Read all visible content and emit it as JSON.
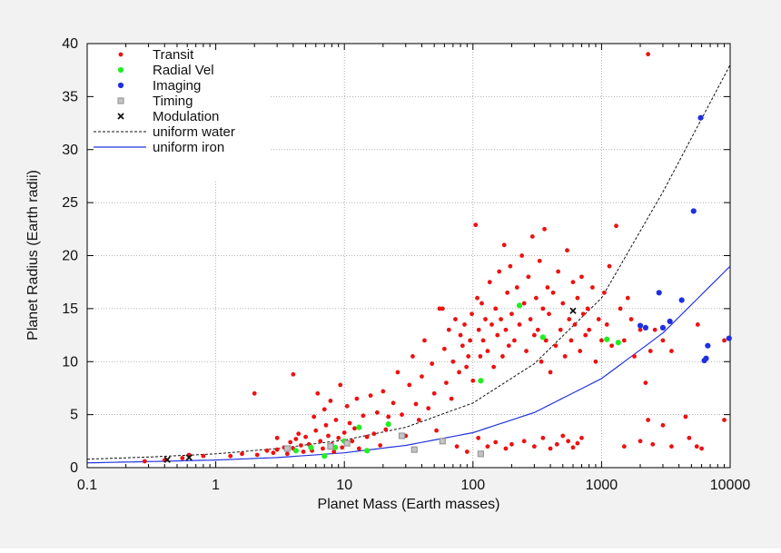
{
  "chart_data": {
    "type": "scatter",
    "title": "",
    "xlabel": "Planet Mass (Earth masses)",
    "ylabel": "Planet Radius (Earth radii)",
    "xscale": "log",
    "xlim": [
      0.1,
      10000
    ],
    "ylim": [
      0,
      40
    ],
    "grid": true,
    "legend_position": "top-left",
    "colors": {
      "transit": "#ee1111",
      "radial_vel": "#22ee22",
      "imaging": "#1f2fe0",
      "timing": "#9a9a9a",
      "modulation": "#111111",
      "water": "#111111",
      "iron": "#2233dd",
      "background": "#f2f2f2",
      "plot_background": "#ffffff"
    },
    "x_ticks": [
      {
        "value": 0.1,
        "label": "0.1"
      },
      {
        "value": 1,
        "label": "1"
      },
      {
        "value": 10,
        "label": "10"
      },
      {
        "value": 100,
        "label": "100"
      },
      {
        "value": 1000,
        "label": "1000"
      },
      {
        "value": 10000,
        "label": "10000"
      }
    ],
    "y_ticks": [
      {
        "value": 0,
        "label": "0"
      },
      {
        "value": 5,
        "label": "5"
      },
      {
        "value": 10,
        "label": "10"
      },
      {
        "value": 15,
        "label": "15"
      },
      {
        "value": 20,
        "label": "20"
      },
      {
        "value": 25,
        "label": "25"
      },
      {
        "value": 30,
        "label": "30"
      },
      {
        "value": 35,
        "label": "35"
      },
      {
        "value": 40,
        "label": "40"
      }
    ],
    "legend": [
      {
        "key": "transit",
        "label": "Transit",
        "marker": "dot"
      },
      {
        "key": "radial_vel",
        "label": "Radial Vel",
        "marker": "dot"
      },
      {
        "key": "imaging",
        "label": "Imaging",
        "marker": "dot"
      },
      {
        "key": "timing",
        "label": "Timing",
        "marker": "square"
      },
      {
        "key": "modulation",
        "label": "Modulation",
        "marker": "cross"
      },
      {
        "key": "water",
        "label": "uniform water",
        "marker": "dashed-line"
      },
      {
        "key": "iron",
        "label": "uniform iron",
        "marker": "solid-line"
      }
    ],
    "curves": [
      {
        "key": "water",
        "name": "uniform water",
        "style": "dashed",
        "points": [
          [
            0.1,
            0.8
          ],
          [
            0.3,
            1.0
          ],
          [
            1,
            1.3
          ],
          [
            3,
            1.8
          ],
          [
            10,
            2.6
          ],
          [
            30,
            3.8
          ],
          [
            100,
            6.1
          ],
          [
            300,
            9.8
          ],
          [
            1000,
            16.0
          ],
          [
            3000,
            26.0
          ],
          [
            10000,
            38.0
          ]
        ]
      },
      {
        "key": "iron",
        "name": "uniform iron",
        "style": "solid",
        "points": [
          [
            0.1,
            0.45
          ],
          [
            0.3,
            0.57
          ],
          [
            1,
            0.72
          ],
          [
            3,
            0.95
          ],
          [
            10,
            1.4
          ],
          [
            30,
            2.1
          ],
          [
            100,
            3.3
          ],
          [
            300,
            5.2
          ],
          [
            1000,
            8.4
          ],
          [
            3000,
            12.7
          ],
          [
            10000,
            19.0
          ]
        ]
      }
    ],
    "series": [
      {
        "key": "transit",
        "name": "Transit",
        "points": [
          [
            0.28,
            0.6
          ],
          [
            0.4,
            0.7
          ],
          [
            0.55,
            0.9
          ],
          [
            0.62,
            1.2
          ],
          [
            0.8,
            1.1
          ],
          [
            1.3,
            1.1
          ],
          [
            1.6,
            1.3
          ],
          [
            2.0,
            7.0
          ],
          [
            2.1,
            1.2
          ],
          [
            2.5,
            1.6
          ],
          [
            2.8,
            1.4
          ],
          [
            3.0,
            2.8
          ],
          [
            3.0,
            1.7
          ],
          [
            3.4,
            1.9
          ],
          [
            3.6,
            1.3
          ],
          [
            3.8,
            2.4
          ],
          [
            4.0,
            8.8
          ],
          [
            4.0,
            1.8
          ],
          [
            4.2,
            2.7
          ],
          [
            4.4,
            3.2
          ],
          [
            4.6,
            2.1
          ],
          [
            4.8,
            1.5
          ],
          [
            5.0,
            2.9
          ],
          [
            5.3,
            2.2
          ],
          [
            5.6,
            1.6
          ],
          [
            5.8,
            4.8
          ],
          [
            6.0,
            3.5
          ],
          [
            6.2,
            7.0
          ],
          [
            6.5,
            2.5
          ],
          [
            6.8,
            1.8
          ],
          [
            7.0,
            5.5
          ],
          [
            7.2,
            4.0
          ],
          [
            7.5,
            3.0
          ],
          [
            7.8,
            6.3
          ],
          [
            8.0,
            2.2
          ],
          [
            8.3,
            1.5
          ],
          [
            8.6,
            4.5
          ],
          [
            9.0,
            2.8
          ],
          [
            9.3,
            7.8
          ],
          [
            9.6,
            1.9
          ],
          [
            10.0,
            3.3
          ],
          [
            10.5,
            5.8
          ],
          [
            11.0,
            4.2
          ],
          [
            11.5,
            2.5
          ],
          [
            12.0,
            3.7
          ],
          [
            12.5,
            6.5
          ],
          [
            13.0,
            1.8
          ],
          [
            14.0,
            4.9
          ],
          [
            15.0,
            2.9
          ],
          [
            16.0,
            6.8
          ],
          [
            17.0,
            3.2
          ],
          [
            18.0,
            5.2
          ],
          [
            19.0,
            2.1
          ],
          [
            20.0,
            7.2
          ],
          [
            21.0,
            3.6
          ],
          [
            22.0,
            4.8
          ],
          [
            24.0,
            6.1
          ],
          [
            26.0,
            9.0
          ],
          [
            28.0,
            5.0
          ],
          [
            30.0,
            3.0
          ],
          [
            32.0,
            7.8
          ],
          [
            34.0,
            10.5
          ],
          [
            36.0,
            6.0
          ],
          [
            38.0,
            4.5
          ],
          [
            40.0,
            8.6
          ],
          [
            42.0,
            12.0
          ],
          [
            45.0,
            5.6
          ],
          [
            48.0,
            9.8
          ],
          [
            50.0,
            7.0
          ],
          [
            52.0,
            3.5
          ],
          [
            55.0,
            15.0
          ],
          [
            58.0,
            15.0
          ],
          [
            60.0,
            11.2
          ],
          [
            62.0,
            8.0
          ],
          [
            65.0,
            13.0
          ],
          [
            68.0,
            6.5
          ],
          [
            70.0,
            10.0
          ],
          [
            73.0,
            14.0
          ],
          [
            75.0,
            2.0
          ],
          [
            78.0,
            9.0
          ],
          [
            80.0,
            12.5
          ],
          [
            83.0,
            11.5
          ],
          [
            86.0,
            13.5
          ],
          [
            89.0,
            9.5
          ],
          [
            92.0,
            10.5
          ],
          [
            95.0,
            12.0
          ],
          [
            98.0,
            14.5
          ],
          [
            100.0,
            8.2
          ],
          [
            105.0,
            22.9
          ],
          [
            108.0,
            16.0
          ],
          [
            111.0,
            13.0
          ],
          [
            114.0,
            10.5
          ],
          [
            117.0,
            15.5
          ],
          [
            120.0,
            12.0
          ],
          [
            125.0,
            14.0
          ],
          [
            130.0,
            11.0
          ],
          [
            135.0,
            17.5
          ],
          [
            140.0,
            13.5
          ],
          [
            145.0,
            9.5
          ],
          [
            150.0,
            15.0
          ],
          [
            155.0,
            12.5
          ],
          [
            160.0,
            18.5
          ],
          [
            165.0,
            14.0
          ],
          [
            170.0,
            10.5
          ],
          [
            175.0,
            21.0
          ],
          [
            180.0,
            13.0
          ],
          [
            185.0,
            16.5
          ],
          [
            190.0,
            11.5
          ],
          [
            195.0,
            19.0
          ],
          [
            200.0,
            14.5
          ],
          [
            210.0,
            12.0
          ],
          [
            220.0,
            17.0
          ],
          [
            230.0,
            13.5
          ],
          [
            240.0,
            20.0
          ],
          [
            250.0,
            15.5
          ],
          [
            260.0,
            11.0
          ],
          [
            270.0,
            18.0
          ],
          [
            280.0,
            14.0
          ],
          [
            290.0,
            21.8
          ],
          [
            300.0,
            12.5
          ],
          [
            310.0,
            16.0
          ],
          [
            320.0,
            13.0
          ],
          [
            330.0,
            19.5
          ],
          [
            340.0,
            10.0
          ],
          [
            350.0,
            15.0
          ],
          [
            360.0,
            22.5
          ],
          [
            370.0,
            12.0
          ],
          [
            380.0,
            17.0
          ],
          [
            390.0,
            14.5
          ],
          [
            400.0,
            9.0
          ],
          [
            420.0,
            16.5
          ],
          [
            440.0,
            11.5
          ],
          [
            460.0,
            18.5
          ],
          [
            480.0,
            13.0
          ],
          [
            500.0,
            15.5
          ],
          [
            520.0,
            10.5
          ],
          [
            540.0,
            20.5
          ],
          [
            560.0,
            14.0
          ],
          [
            580.0,
            12.0
          ],
          [
            600.0,
            17.5
          ],
          [
            620.0,
            13.5
          ],
          [
            650.0,
            16.0
          ],
          [
            680.0,
            11.0
          ],
          [
            700.0,
            18.0
          ],
          [
            720.0,
            14.5
          ],
          [
            750.0,
            12.5
          ],
          [
            780.0,
            15.0
          ],
          [
            800.0,
            13.0
          ],
          [
            850.0,
            17.0
          ],
          [
            900.0,
            10.0
          ],
          [
            950.0,
            14.0
          ],
          [
            1000.0,
            12.0
          ],
          [
            1050.0,
            16.5
          ],
          [
            1100.0,
            13.5
          ],
          [
            1150.0,
            19.0
          ],
          [
            1200.0,
            11.5
          ],
          [
            1300.0,
            22.8
          ],
          [
            1400.0,
            15.0
          ],
          [
            1500.0,
            12.0
          ],
          [
            1600.0,
            16.0
          ],
          [
            1700.0,
            14.0
          ],
          [
            1800.0,
            10.5
          ],
          [
            2000.0,
            13.0
          ],
          [
            2200.0,
            8.0
          ],
          [
            2400.0,
            11.0
          ],
          [
            2600.0,
            13.0
          ],
          [
            3000.0,
            12.0
          ],
          [
            3500.0,
            11.0
          ],
          [
            2300.0,
            39.0
          ],
          [
            2300.0,
            4.5
          ],
          [
            1500.0,
            2.0
          ],
          [
            2000.0,
            2.5
          ],
          [
            2500.0,
            2.2
          ],
          [
            3000.0,
            4.0
          ],
          [
            3500.0,
            2.0
          ],
          [
            4500.0,
            4.8
          ],
          [
            4800.0,
            2.8
          ],
          [
            5500.0,
            2.0
          ],
          [
            6000.0,
            1.8
          ],
          [
            9000.0,
            4.5
          ],
          [
            9000.0,
            12.0
          ],
          [
            5600.0,
            13.5
          ],
          [
            250.0,
            2.5
          ],
          [
            300.0,
            2.0
          ],
          [
            350.0,
            2.8
          ],
          [
            400.0,
            1.8
          ],
          [
            450.0,
            2.2
          ],
          [
            500.0,
            3.0
          ],
          [
            550.0,
            2.5
          ],
          [
            600.0,
            1.9
          ],
          [
            650.0,
            2.3
          ],
          [
            700.0,
            2.8
          ],
          [
            180.0,
            1.8
          ],
          [
            200.0,
            2.2
          ],
          [
            150.0,
            2.4
          ],
          [
            130.0,
            2.0
          ],
          [
            110.0,
            2.8
          ],
          [
            90.0,
            1.5
          ]
        ]
      },
      {
        "key": "radial_vel",
        "name": "Radial Vel",
        "points": [
          [
            4.2,
            1.6
          ],
          [
            5.5,
            1.9
          ],
          [
            7.0,
            1.1
          ],
          [
            8.5,
            1.9
          ],
          [
            10.0,
            2.5
          ],
          [
            13.0,
            3.8
          ],
          [
            15.0,
            1.6
          ],
          [
            22.0,
            4.1
          ],
          [
            115.0,
            8.2
          ],
          [
            230.0,
            15.3
          ],
          [
            350.0,
            12.3
          ],
          [
            1100.0,
            12.1
          ],
          [
            1350.0,
            11.8
          ]
        ]
      },
      {
        "key": "imaging",
        "name": "Imaging",
        "points": [
          [
            2000.0,
            13.4
          ],
          [
            2200.0,
            13.2
          ],
          [
            2800.0,
            16.5
          ],
          [
            3000.0,
            13.2
          ],
          [
            3400.0,
            13.8
          ],
          [
            4200.0,
            15.8
          ],
          [
            5200.0,
            24.2
          ],
          [
            5900.0,
            33.0
          ],
          [
            6300.0,
            10.1
          ],
          [
            6500.0,
            10.3
          ],
          [
            6700.0,
            11.5
          ],
          [
            9800.0,
            12.2
          ]
        ]
      },
      {
        "key": "timing",
        "name": "Timing",
        "points": [
          [
            3.6,
            1.8
          ],
          [
            7.8,
            2.0
          ],
          [
            10.5,
            2.3
          ],
          [
            28.0,
            3.0
          ],
          [
            35.0,
            1.7
          ],
          [
            58.0,
            2.5
          ],
          [
            115.0,
            1.3
          ]
        ]
      },
      {
        "key": "modulation",
        "name": "Modulation",
        "points": [
          [
            0.42,
            0.75
          ],
          [
            0.62,
            0.95
          ],
          [
            600.0,
            14.8
          ]
        ]
      }
    ]
  }
}
